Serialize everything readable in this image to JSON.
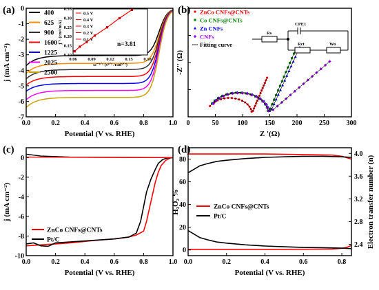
{
  "chart_data": [
    {
      "panel": "(a)",
      "type": "line",
      "xlabel": "Potential (V vs. RHE)",
      "ylabel": "j (mA cm⁻²)",
      "xlim": [
        0.0,
        1.0
      ],
      "ylim": [
        -7,
        0
      ],
      "xticks": [
        "0.0",
        "0.2",
        "0.4",
        "0.6",
        "0.8",
        "1.0"
      ],
      "yticks": [
        "-7",
        "-6",
        "-5",
        "-4",
        "-3",
        "-2",
        "-1",
        "0"
      ],
      "legend_position": "top-left",
      "series": [
        {
          "name": "400",
          "color": "#000000",
          "plateau": -3.05,
          "start": -3.7
        },
        {
          "name": "625",
          "color": "#ff8c00",
          "plateau": -3.55,
          "start": -4.2
        },
        {
          "name": "900",
          "color": "#303030",
          "plateau": -3.95,
          "start": -4.55
        },
        {
          "name": "1600",
          "color": "#ff0000",
          "plateau": -4.4,
          "start": -4.95
        },
        {
          "name": "1225",
          "color": "#0000ff",
          "plateau": -4.85,
          "start": -5.35
        },
        {
          "name": "2025",
          "color": "#ff00ff",
          "plateau": -5.3,
          "start": -5.9
        },
        {
          "name": "2500",
          "color": "#c8a000",
          "plateau": -5.75,
          "start": -6.4
        }
      ],
      "inset": {
        "xlabel": "ω⁻¹ᐟ² (s¹ᐟ² /rad¹ᐟ²)",
        "ylabel": "j⁻¹ (cm²/mA)",
        "xlim": [
          0.06,
          0.18
        ],
        "ylim": [
          0.1,
          0.35
        ],
        "xticks": [
          "0.06",
          "0.09",
          "0.12",
          "0.15",
          "0.18"
        ],
        "yticks": [
          "0.10",
          "0.15",
          "0.20",
          "0.25",
          "0.30",
          "0.35"
        ],
        "annotation": "n=3.81",
        "legend": [
          "0.5 V",
          "0.4 V",
          "0.3 V",
          "0.2 V",
          "0.1 V"
        ],
        "points": [
          [
            0.0625,
            0.12
          ],
          [
            0.071,
            0.145
          ],
          [
            0.082,
            0.17
          ],
          [
            0.095,
            0.205
          ],
          [
            0.115,
            0.25
          ],
          [
            0.135,
            0.3
          ],
          [
            0.155,
            0.345
          ]
        ]
      }
    },
    {
      "panel": "(b)",
      "type": "scatter",
      "xlabel": "Z '(Ω)",
      "ylabel": "-Z'' (Ω)",
      "xlim": [
        0,
        300
      ],
      "ylim": [
        0,
        250
      ],
      "xticks": [
        "0",
        "50",
        "100",
        "150",
        "200",
        "250",
        "300"
      ],
      "yticks": [],
      "legend_position": "top-left",
      "legend_fit": "Fitting curve",
      "circuit_labels": [
        "Rs",
        "CPE1",
        "Rct",
        "Wo"
      ],
      "series": [
        {
          "name": "ZnCo CNFs@CNTs",
          "color": "#ff0000",
          "marker": "circle",
          "rs": 35,
          "rct": 82,
          "tail_end": [
            145,
            72
          ]
        },
        {
          "name": "Co CNFs@CNTs",
          "color": "#008000",
          "marker": "square",
          "rs": 37,
          "rct": 110,
          "tail_end": [
            198,
            125
          ]
        },
        {
          "name": "Zn CNFs",
          "color": "#0000ff",
          "marker": "triangle",
          "rs": 38,
          "rct": 112,
          "tail_end": [
            205,
            128
          ]
        },
        {
          "name": "CNFs",
          "color": "#a000ff",
          "marker": "diamond",
          "rs": 40,
          "rct": 108,
          "tail_end": [
            260,
            102
          ]
        }
      ]
    },
    {
      "panel": "(c)",
      "type": "line",
      "xlabel": "Potential (V vs. RHE)",
      "ylabel": "j (mA cm⁻²)",
      "xlim": [
        0.0,
        1.0
      ],
      "ylim": [
        -10,
        1
      ],
      "xticks": [
        "0.0",
        "0.2",
        "0.4",
        "0.6",
        "0.8",
        "1.0"
      ],
      "yticks": [
        "-10",
        "-8",
        "-6",
        "-4",
        "-2",
        "0"
      ],
      "legend_position": "bottom-left",
      "series": [
        {
          "name": "ZnCo CNFs@CNTs",
          "color": "#ff0000",
          "x": [
            0.0,
            0.1,
            0.2,
            0.3,
            0.4,
            0.5,
            0.6,
            0.7,
            0.75,
            0.8,
            0.82,
            0.85,
            0.88,
            0.9,
            0.92,
            0.95,
            0.98,
            1.0
          ],
          "y": [
            -9.0,
            -8.9,
            -8.8,
            -8.7,
            -8.55,
            -8.4,
            -8.3,
            -8.1,
            -7.9,
            -7.5,
            -6.5,
            -4.5,
            -2.5,
            -1.5,
            -0.8,
            -0.3,
            -0.05,
            0.0
          ]
        },
        {
          "name": "Pt/C",
          "color": "#000000",
          "x": [
            0.0,
            0.05,
            0.1,
            0.15,
            0.2,
            0.3,
            0.4,
            0.5,
            0.6,
            0.7,
            0.75,
            0.78,
            0.8,
            0.82,
            0.85,
            0.88,
            0.9,
            0.93,
            0.96,
            1.0
          ],
          "y": [
            -8.8,
            -8.7,
            -9.0,
            -9.05,
            -8.7,
            -8.6,
            -8.5,
            -8.4,
            -8.3,
            -8.1,
            -7.7,
            -6.5,
            -5.0,
            -3.5,
            -2.2,
            -1.2,
            -0.6,
            -0.2,
            -0.05,
            0.0
          ]
        }
      ]
    },
    {
      "panel": "(d)",
      "type": "line",
      "xlabel": "Potential (V vs. RHE)",
      "ylabel": "H₂O₂ %",
      "ylabel_right": "Electron transfer number (n)",
      "xlim": [
        0.0,
        0.85
      ],
      "ylim": [
        -5,
        90
      ],
      "ylim_right": [
        2.2,
        4.1
      ],
      "xticks": [
        "0.0",
        "0.2",
        "0.4",
        "0.6",
        "0.8"
      ],
      "yticks": [
        "0",
        "20",
        "40",
        "60",
        "80"
      ],
      "yticks_right": [
        "2.4",
        "2.8",
        "3.2",
        "3.6",
        "4.0"
      ],
      "legend_position": "center",
      "series": [
        {
          "name": "ZnCo CNFs@CNTs",
          "color": "#ff0000",
          "h2o2": {
            "x": [
              0.0,
              0.1,
              0.2,
              0.4,
              0.6,
              0.75,
              0.8,
              0.83,
              0.85
            ],
            "y": [
              0.5,
              0.5,
              0.5,
              0.5,
              0.6,
              0.8,
              1.5,
              2.5,
              4.0
            ]
          },
          "n": {
            "x": [
              0.0,
              0.2,
              0.4,
              0.6,
              0.75,
              0.8,
              0.83,
              0.85
            ],
            "y": [
              3.99,
              3.99,
              3.99,
              3.98,
              3.97,
              3.95,
              3.92,
              3.9
            ]
          }
        },
        {
          "name": "Pt/C",
          "color": "#000000",
          "h2o2": {
            "x": [
              0.0,
              0.03,
              0.06,
              0.1,
              0.15,
              0.2,
              0.3,
              0.4,
              0.5,
              0.6,
              0.7,
              0.8,
              0.85
            ],
            "y": [
              17,
              14,
              11,
              9,
              7,
              6,
              4.5,
              3.5,
              2.8,
              2.2,
              2.0,
              1.6,
              1.2
            ]
          },
          "n": {
            "x": [
              0.0,
              0.03,
              0.06,
              0.1,
              0.15,
              0.2,
              0.3,
              0.4,
              0.5,
              0.6,
              0.7,
              0.8,
              0.85
            ],
            "y": [
              3.66,
              3.72,
              3.78,
              3.82,
              3.86,
              3.88,
              3.91,
              3.93,
              3.94,
              3.95,
              3.95,
              3.94,
              3.93
            ]
          }
        }
      ]
    }
  ]
}
